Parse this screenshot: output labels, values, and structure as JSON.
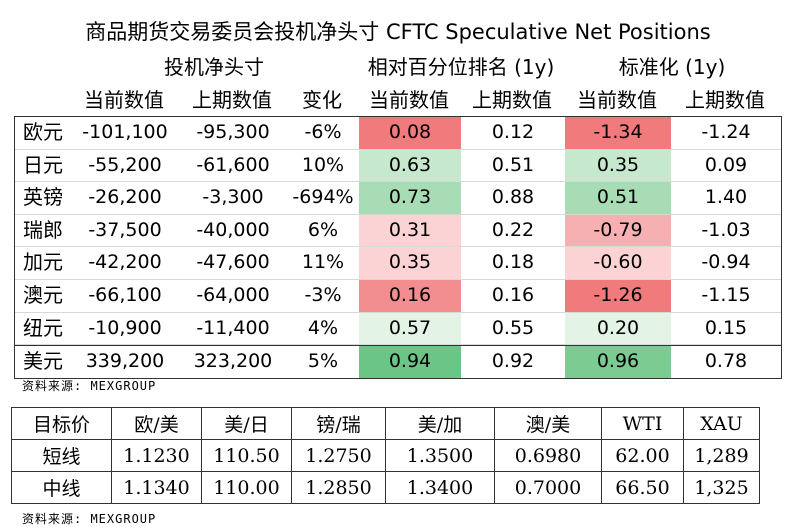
{
  "cftc": {
    "title": "商品期货交易委员会投机净头寸 CFTC Speculative Net Positions",
    "groups": [
      "",
      "投机净头寸",
      "相对百分位排名 (1y)",
      "标准化 (1y)"
    ],
    "columns": [
      "",
      "当前数值",
      "上期数值",
      "变化",
      "当前数值",
      "上期数值",
      "当前数值",
      "上期数值"
    ],
    "colors": {
      "red_strong": "#f07a7c",
      "red_mid": "#f6b0b1",
      "red_light": "#fbd3d4",
      "green_light": "#c6e8cd",
      "green_mid": "#a8dcb4",
      "green_strong": "#6bc586"
    },
    "rows": [
      {
        "name": "欧元",
        "cur": "-101,100",
        "prev": "-95,300",
        "chg": "-6%",
        "rank_cur": "0.08",
        "rank_prev": "0.12",
        "std_cur": "-1.34",
        "std_prev": "-1.24",
        "rank_color": "#f07a7c",
        "std_color": "#f07a7c"
      },
      {
        "name": "日元",
        "cur": "-55,200",
        "prev": "-61,600",
        "chg": "10%",
        "rank_cur": "0.63",
        "rank_prev": "0.51",
        "std_cur": "0.35",
        "std_prev": "0.09",
        "rank_color": "#c6e8cd",
        "std_color": "#c6e8cd"
      },
      {
        "name": "英镑",
        "cur": "-26,200",
        "prev": "-3,300",
        "chg": "-694%",
        "rank_cur": "0.73",
        "rank_prev": "0.88",
        "std_cur": "0.51",
        "std_prev": "1.40",
        "rank_color": "#a8dcb4",
        "std_color": "#a8dcb4"
      },
      {
        "name": "瑞郎",
        "cur": "-37,500",
        "prev": "-40,000",
        "chg": "6%",
        "rank_cur": "0.31",
        "rank_prev": "0.22",
        "std_cur": "-0.79",
        "std_prev": "-1.03",
        "rank_color": "#fbd3d4",
        "std_color": "#f6b0b1"
      },
      {
        "name": "加元",
        "cur": "-42,200",
        "prev": "-47,600",
        "chg": "11%",
        "rank_cur": "0.35",
        "rank_prev": "0.18",
        "std_cur": "-0.60",
        "std_prev": "-0.94",
        "rank_color": "#fbd3d4",
        "std_color": "#fbd3d4"
      },
      {
        "name": "澳元",
        "cur": "-66,100",
        "prev": "-64,000",
        "chg": "-3%",
        "rank_cur": "0.16",
        "rank_prev": "0.16",
        "std_cur": "-1.26",
        "std_prev": "-1.15",
        "rank_color": "#f38e90",
        "std_color": "#f07a7c"
      },
      {
        "name": "纽元",
        "cur": "-10,900",
        "prev": "-11,400",
        "chg": "4%",
        "rank_cur": "0.57",
        "rank_prev": "0.55",
        "std_cur": "0.20",
        "std_prev": "0.15",
        "rank_color": "#e3f3e6",
        "std_color": "#e3f3e6"
      },
      {
        "name": "美元",
        "cur": "339,200",
        "prev": "323,200",
        "chg": "5%",
        "rank_cur": "0.94",
        "rank_prev": "0.92",
        "std_cur": "0.96",
        "std_prev": "0.78",
        "rank_color": "#6bc586",
        "std_color": "#7ccb93"
      }
    ],
    "source": "资料来源: MEXGROUP"
  },
  "targets": {
    "header": [
      "目标价",
      "欧/美",
      "美/日",
      "镑/瑞",
      "美/加",
      "澳/美",
      "WTI",
      "XAU"
    ],
    "rows": [
      [
        "短线",
        "1.1230",
        "110.50",
        "1.2750",
        "1.3500",
        "0.6980",
        "62.00",
        "1,289"
      ],
      [
        "中线",
        "1.1340",
        "110.00",
        "1.2850",
        "1.3400",
        "0.7000",
        "66.50",
        "1,325"
      ]
    ],
    "source": "资料来源: MEXGROUP"
  }
}
